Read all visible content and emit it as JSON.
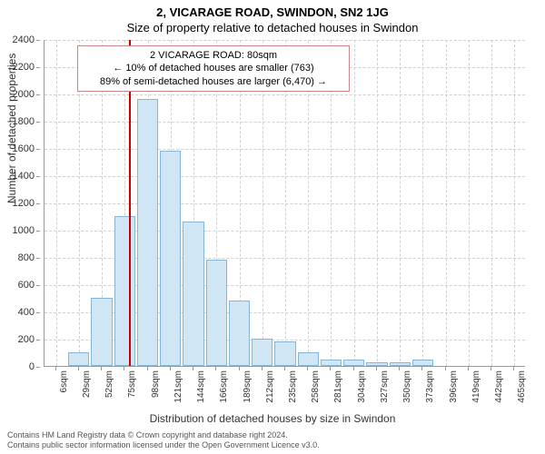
{
  "title_main": "2, VICARAGE ROAD, SWINDON, SN2 1JG",
  "title_sub": "Size of property relative to detached houses in Swindon",
  "ylabel": "Number of detached properties",
  "xlabel": "Distribution of detached houses by size in Swindon",
  "footer_line1": "Contains HM Land Registry data © Crown copyright and database right 2024.",
  "footer_line2": "Contains public sector information licensed under the Open Government Licence v3.0.",
  "chart": {
    "type": "histogram",
    "ylim": [
      0,
      2400
    ],
    "ytick_step": 200,
    "background_color": "#ffffff",
    "grid_color": "#d0d0d0",
    "bar_fill": "#d1e6f5",
    "bar_border": "#88b7d5",
    "ref_line_color": "#cc0000",
    "ref_line_x_index": 3.2,
    "annot_border": "#cc8888",
    "annot_bg": "#ffffff",
    "categories": [
      "6sqm",
      "29sqm",
      "52sqm",
      "75sqm",
      "98sqm",
      "121sqm",
      "144sqm",
      "166sqm",
      "189sqm",
      "212sqm",
      "235sqm",
      "258sqm",
      "281sqm",
      "304sqm",
      "327sqm",
      "350sqm",
      "373sqm",
      "396sqm",
      "419sqm",
      "442sqm",
      "465sqm"
    ],
    "values": [
      0,
      100,
      500,
      1100,
      1960,
      1580,
      1060,
      780,
      480,
      200,
      180,
      100,
      50,
      50,
      30,
      30,
      50,
      0,
      0,
      0,
      0
    ],
    "annot": {
      "line1": "2 VICARAGE ROAD: 80sqm",
      "line2": "← 10% of detached houses are smaller (763)",
      "line3": "89% of semi-detached houses are larger (6,470) →"
    }
  }
}
